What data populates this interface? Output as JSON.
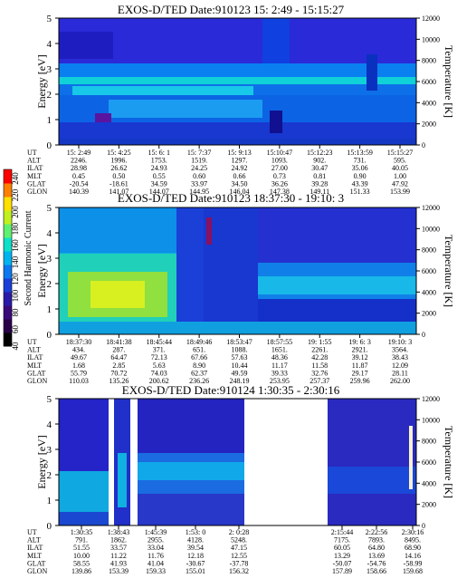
{
  "colorbar": {
    "label": "Second Harmonic Current",
    "ticks": [
      "40",
      "60",
      "80",
      "100",
      "120",
      "140",
      "160",
      "180",
      "200",
      "220",
      "240"
    ],
    "colors": [
      "#000000",
      "#2a0048",
      "#3a0a7a",
      "#2a1aa8",
      "#1a3fd8",
      "#0c78f0",
      "#00b4f0",
      "#10e0c8",
      "#60f070",
      "#c0f020",
      "#ffe000",
      "#ff8000",
      "#ff0000"
    ]
  },
  "chart_data": [
    {
      "type": "heatmap",
      "title": "EXOS-D/TED  Date:910123  15: 2:49 - 15:15:27",
      "ylabel": "Energy [eV]",
      "y2label": "Temperature [K]",
      "ylim": [
        0,
        5
      ],
      "y2lim": [
        0,
        12000
      ],
      "yticks": [
        "0",
        "1",
        "2",
        "3",
        "4",
        "5"
      ],
      "y2ticks": [
        "0",
        "2000",
        "4000",
        "6000",
        "8000",
        "10000",
        "12000"
      ],
      "row_labels": [
        "UT",
        "ALT",
        "ILAT",
        "MLT",
        "GLAT",
        "GLON"
      ],
      "columns": [
        [
          "15: 2:49",
          "2246.",
          "28.98",
          "0.45",
          "-20.54",
          "140.39"
        ],
        [
          "15: 4:25",
          "1996.",
          "26.62",
          "0.50",
          "-18.61",
          "141.07"
        ],
        [
          "15: 6: 1",
          "1753.",
          "24.93",
          "0.55",
          "34.59",
          "144.07"
        ],
        [
          "15: 7:37",
          "1519.",
          "24.25",
          "0.60",
          "33.97",
          "144.95"
        ],
        [
          "15: 9:13",
          "1297.",
          "24.92",
          "0.66",
          "34.50",
          "146.04"
        ],
        [
          "15:10:47",
          "1093.",
          "27.00",
          "0.73",
          "36.26",
          "147.38"
        ],
        [
          "15:12:23",
          "902.",
          "30.47",
          "0.81",
          "39.28",
          "149.11"
        ],
        [
          "15:13:59",
          "731.",
          "35.06",
          "0.90",
          "43.39",
          "151.33"
        ],
        [
          "15:15:27",
          "595.",
          "40.05",
          "1.00",
          "47.92",
          "153.99"
        ]
      ]
    },
    {
      "type": "heatmap",
      "title": "EXOS-D/TED  Date:910123  18:37:30 - 19:10: 3",
      "ylabel": "Energy [eV]",
      "y2label": "Temperature [K]",
      "ylim": [
        0,
        5
      ],
      "y2lim": [
        0,
        12000
      ],
      "yticks": [
        "0",
        "1",
        "2",
        "3",
        "4",
        "5"
      ],
      "y2ticks": [
        "0",
        "2000",
        "4000",
        "6000",
        "8000",
        "10000",
        "12000"
      ],
      "row_labels": [
        "UT",
        "ALT",
        "ILAT",
        "MLT",
        "GLAT",
        "GLON"
      ],
      "columns": [
        [
          "18:37:30",
          "434.",
          "49.67",
          "1.68",
          "55.79",
          "110.03"
        ],
        [
          "18:41:38",
          "287.",
          "64.47",
          "2.85",
          "70.72",
          "135.26"
        ],
        [
          "18:45:44",
          "371.",
          "72.13",
          "5.63",
          "74.03",
          "200.62"
        ],
        [
          "18:49:46",
          "651.",
          "67.66",
          "8.90",
          "62.37",
          "236.26"
        ],
        [
          "18:53:47",
          "1088.",
          "57.63",
          "10.44",
          "49.59",
          "248.19"
        ],
        [
          "18:57:55",
          "1651.",
          "48.36",
          "11.17",
          "39.33",
          "253.95"
        ],
        [
          "19: 1:55",
          "2261.",
          "42.28",
          "11.58",
          "32.76",
          "257.37"
        ],
        [
          "19: 6: 3",
          "2921.",
          "39.12",
          "11.87",
          "29.17",
          "259.96"
        ],
        [
          "19:10: 3",
          "3564.",
          "38.43",
          "12.09",
          "28.11",
          "262.00"
        ]
      ]
    },
    {
      "type": "heatmap",
      "title": "EXOS-D/TED  Date:910124  1:30:35 - 2:30:16",
      "ylabel": "Energy [eV]",
      "y2label": "Temperature [K]",
      "ylim": [
        0,
        5
      ],
      "y2lim": [
        0,
        12000
      ],
      "yticks": [
        "0",
        "1",
        "2",
        "3",
        "4",
        "5"
      ],
      "y2ticks": [
        "0",
        "2000",
        "4000",
        "6000",
        "8000",
        "10000",
        "12000"
      ],
      "row_labels": [
        "UT",
        "ALT",
        "ILAT",
        "MLT",
        "GLAT",
        "GLON"
      ],
      "columns": [
        [
          "1:30:35",
          "791.",
          "51.55",
          "10.00",
          "58.55",
          "139.86"
        ],
        [
          "1:38:43",
          "1862.",
          "33.57",
          "11.22",
          "41.93",
          "153.39"
        ],
        [
          "1:45:39",
          "2955.",
          "33.04",
          "11.76",
          "41.04",
          "159.33"
        ],
        [
          "1:53: 0",
          "4128.",
          "39.54",
          "12.18",
          "-30.67",
          "155.01"
        ],
        [
          "2: 0:28",
          "5248.",
          "47.15",
          "12.55",
          "-37.78",
          "156.32"
        ],
        [
          "2:15:44",
          "7175.",
          "60.05",
          "13.29",
          "-50.07",
          "157.89"
        ],
        [
          "2:22:56",
          "7893.",
          "64.80",
          "13.69",
          "-54.76",
          "158.66"
        ],
        [
          "2:30:16",
          "8495.",
          "68.90",
          "14.16",
          "-58.99",
          "159.68"
        ]
      ]
    }
  ]
}
